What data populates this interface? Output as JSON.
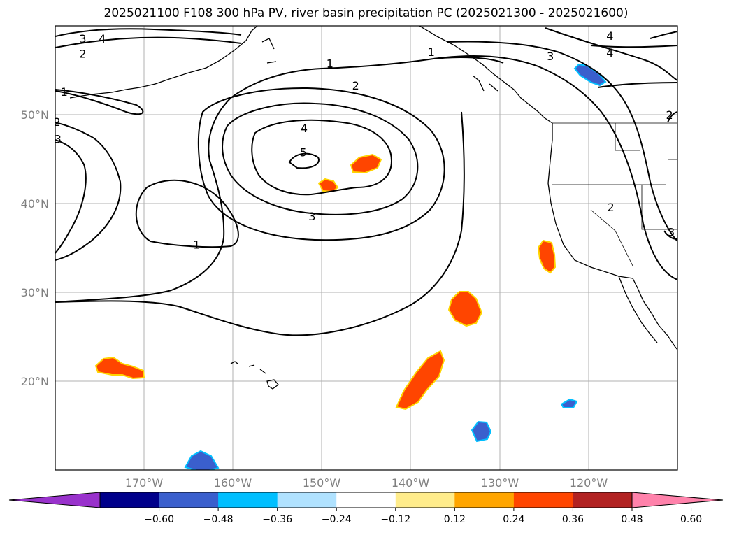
{
  "title": "2025021100 F108 300 hPa PV, river basin precipitation PC (2025021300 - 2025021600)",
  "map": {
    "lon_range": [
      -180,
      -110
    ],
    "lat_range": [
      10,
      60
    ],
    "grid_lons": [
      -170,
      -160,
      -150,
      -140,
      -130,
      -120
    ],
    "grid_lats": [
      20,
      30,
      40,
      50
    ],
    "lat_labels": [
      "50°N",
      "40°N",
      "30°N",
      "20°N"
    ],
    "lon_labels": [
      "170°W",
      "160°W",
      "150°W",
      "140°W",
      "130°W",
      "120°W"
    ]
  },
  "contour_labels": [
    {
      "text": "3",
      "lon": -176.9,
      "lat": 58.6
    },
    {
      "text": "4",
      "lon": -174.7,
      "lat": 58.6
    },
    {
      "text": "2",
      "lon": -176.9,
      "lat": 56.9
    },
    {
      "text": "1",
      "lon": -179.0,
      "lat": 52.6
    },
    {
      "text": "2",
      "lon": -179.8,
      "lat": 49.2
    },
    {
      "text": "3",
      "lon": -179.7,
      "lat": 47.3
    },
    {
      "text": "1",
      "lon": -149.1,
      "lat": 55.8
    },
    {
      "text": "2",
      "lon": -146.2,
      "lat": 53.3
    },
    {
      "text": "4",
      "lon": -152.0,
      "lat": 48.5
    },
    {
      "text": "5",
      "lon": -152.1,
      "lat": 45.8
    },
    {
      "text": "3",
      "lon": -151.1,
      "lat": 38.6
    },
    {
      "text": "1",
      "lon": -164.1,
      "lat": 35.4
    },
    {
      "text": "1",
      "lon": -137.7,
      "lat": 57.1
    },
    {
      "text": "3",
      "lon": -124.3,
      "lat": 56.6
    },
    {
      "text": "4",
      "lon": -117.6,
      "lat": 58.9
    },
    {
      "text": "4",
      "lon": -117.6,
      "lat": 57.0
    },
    {
      "text": "2",
      "lon": -110.9,
      "lat": 50.0
    },
    {
      "text": "2",
      "lon": -117.5,
      "lat": 39.6
    },
    {
      "text": "3",
      "lon": -110.7,
      "lat": 36.8
    }
  ],
  "colorbar": {
    "ticks": [
      "−0.60",
      "−0.48",
      "−0.36",
      "−0.24",
      "−0.12",
      "0.12",
      "0.24",
      "0.36",
      "0.48",
      "0.60"
    ],
    "colors": [
      "#9932cc",
      "#00008b",
      "#3a5fcd",
      "#00bfff",
      "#b0e2ff",
      "#ffffff",
      "#ffec8b",
      "#ffa500",
      "#ff4500",
      "#b22222",
      "#ff82ab"
    ]
  },
  "colors": {
    "warm": "#ff4500",
    "warm_edge": "#ffd400",
    "cool": "#3a5fcd",
    "cool_edge": "#00bfff"
  }
}
